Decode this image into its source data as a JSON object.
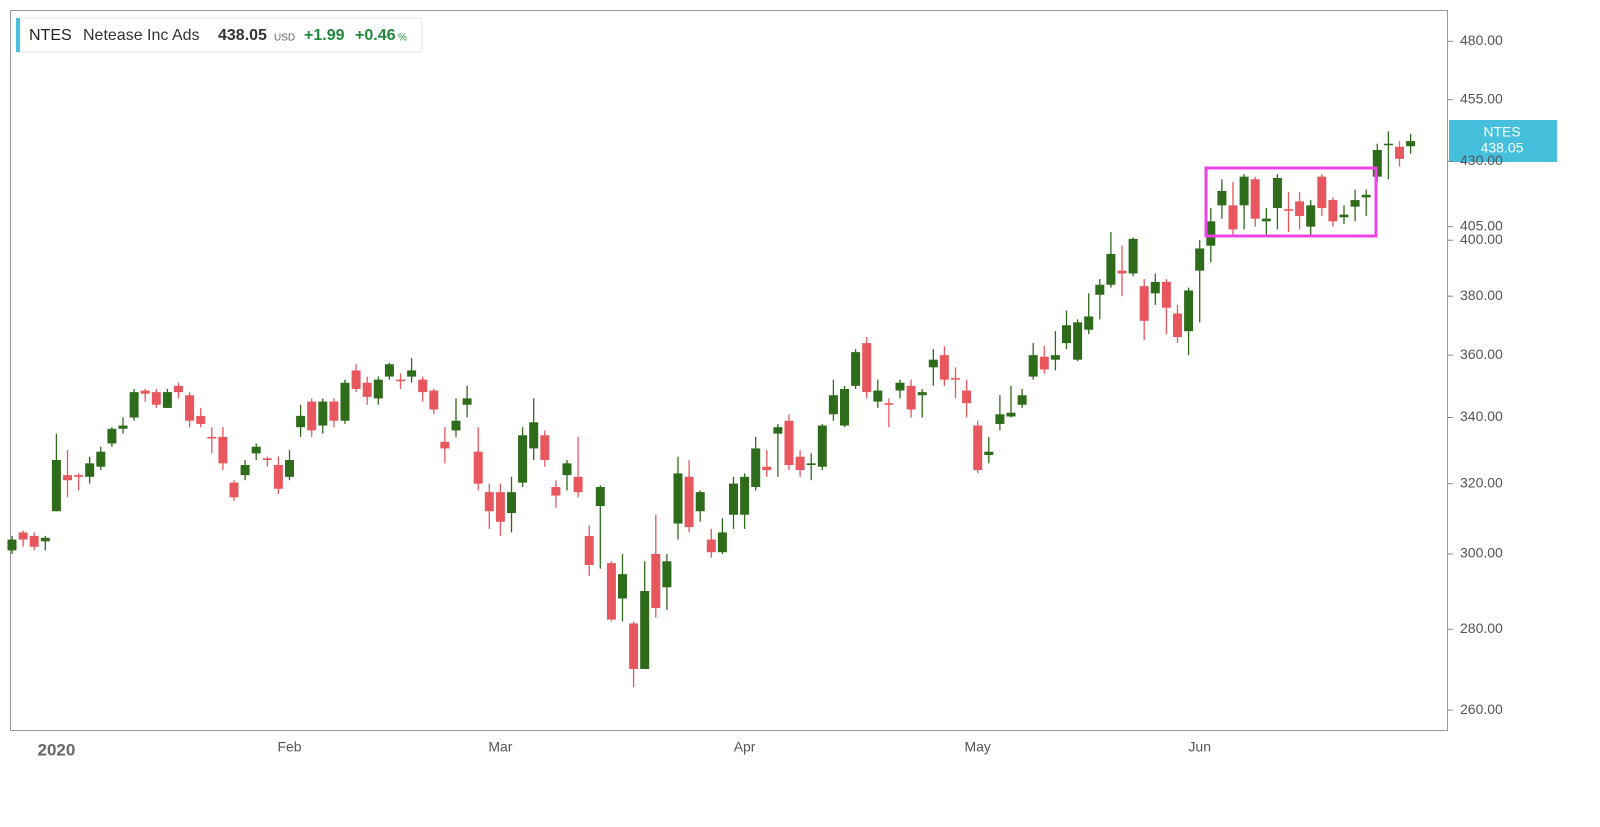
{
  "header": {
    "symbol": "NTES",
    "name": "Netease Inc Ads",
    "price": "438.05",
    "currency": "USD",
    "change": "+1.99",
    "change_percent": "+0.46",
    "percent_sign": "%"
  },
  "chart_data": {
    "type": "candlestick",
    "log_scale": true,
    "grid": false,
    "up_color": "#2e6b1a",
    "down_color": "#e8575d",
    "ylim": [
      255.3,
      494
    ],
    "yticks": [
      {
        "value": 260,
        "label": "260.00"
      },
      {
        "value": 280,
        "label": "280.00"
      },
      {
        "value": 300,
        "label": "300.00"
      },
      {
        "value": 320,
        "label": "320.00"
      },
      {
        "value": 340,
        "label": "340.00"
      },
      {
        "value": 360,
        "label": "360.00"
      },
      {
        "value": 380,
        "label": "380.00"
      },
      {
        "value": 400,
        "label": "400.00"
      },
      {
        "value": 405,
        "label": "405.00"
      },
      {
        "value": 430,
        "label": "430.00"
      },
      {
        "value": 455,
        "label": "455.00"
      },
      {
        "value": 480,
        "label": "480.00"
      }
    ],
    "categories": [
      null,
      null,
      null,
      null,
      "2020",
      null,
      null,
      null,
      null,
      null,
      null,
      null,
      null,
      null,
      null,
      null,
      null,
      null,
      null,
      null,
      null,
      null,
      null,
      null,
      null,
      "Feb",
      null,
      null,
      null,
      null,
      null,
      null,
      null,
      null,
      null,
      null,
      null,
      null,
      null,
      null,
      null,
      null,
      null,
      null,
      "Mar",
      null,
      null,
      null,
      null,
      null,
      null,
      null,
      null,
      null,
      null,
      null,
      null,
      null,
      null,
      null,
      null,
      null,
      null,
      null,
      null,
      null,
      "Apr",
      null,
      null,
      null,
      null,
      null,
      null,
      null,
      null,
      null,
      null,
      null,
      null,
      null,
      null,
      null,
      null,
      null,
      null,
      null,
      null,
      "May",
      null,
      null,
      null,
      null,
      null,
      null,
      null,
      null,
      null,
      null,
      null,
      null,
      null,
      null,
      null,
      null,
      null,
      null,
      null,
      "Jun",
      null,
      null,
      null,
      null,
      null,
      null,
      null,
      null,
      null,
      null,
      null,
      null,
      null,
      null,
      null,
      null,
      null,
      null,
      null
    ],
    "open": [
      301,
      306,
      305,
      303.5,
      312,
      322.5,
      322.5,
      322,
      325,
      332,
      336.5,
      340,
      348.5,
      348,
      343,
      350,
      347,
      340.5,
      334,
      334,
      320.3,
      322.5,
      329,
      327.5,
      325.5,
      322,
      337,
      345,
      337.5,
      345,
      339,
      355,
      351,
      346,
      353,
      352,
      353,
      352,
      348.5,
      332.5,
      336,
      344,
      329.5,
      317.5,
      317.5,
      311.5,
      320.3,
      330.5,
      334.5,
      319,
      322.5,
      322,
      305,
      313.5,
      297.5,
      288,
      281.5,
      270,
      300,
      291,
      308.5,
      322,
      312,
      304,
      300.5,
      311,
      311,
      319,
      325,
      335,
      339,
      328,
      325.5,
      325,
      341,
      337.5,
      350,
      364,
      345,
      344.5,
      348.5,
      350,
      347,
      356,
      360,
      352.5,
      348.5,
      337.5,
      328.5,
      338,
      340.3,
      344,
      353,
      359.5,
      358.5,
      364,
      358.5,
      368.5,
      380.5,
      384,
      389,
      388,
      383.5,
      381,
      385,
      374,
      368,
      389,
      398,
      413,
      413,
      413,
      423,
      407,
      412,
      411.5,
      414.5,
      405,
      424,
      415,
      408.5,
      412.5,
      416,
      424,
      436.5,
      435.8,
      436
    ],
    "high": [
      305,
      306.5,
      306,
      305,
      335,
      330,
      323,
      328,
      331,
      337,
      340,
      349,
      349,
      349,
      349,
      351,
      348,
      343,
      337,
      337,
      321,
      327,
      332,
      328,
      328,
      330,
      344,
      346,
      346,
      346,
      352,
      357,
      353,
      353,
      357.5,
      354,
      359,
      353,
      349,
      337,
      346,
      350,
      337,
      320,
      320,
      322,
      337,
      346,
      336,
      321,
      327,
      334,
      308,
      319.5,
      298,
      300,
      282,
      298,
      311,
      300,
      328,
      327,
      318,
      307,
      310,
      322,
      323,
      334,
      330,
      338,
      341,
      330,
      329,
      338,
      352,
      350,
      362,
      366,
      352,
      346,
      352,
      352,
      349,
      362,
      363,
      356,
      352,
      339,
      334,
      347,
      350,
      349,
      364,
      363,
      368,
      375,
      372,
      381,
      386,
      403,
      398,
      401,
      386,
      388,
      386,
      377,
      383,
      400,
      412,
      423,
      422,
      425,
      424,
      412,
      425,
      418,
      418,
      415,
      425,
      416,
      413,
      419,
      419,
      437,
      442,
      438,
      441
    ],
    "low": [
      300,
      302,
      301,
      301,
      312,
      316,
      318,
      320,
      324,
      331,
      335,
      339,
      345,
      343,
      343,
      346,
      337,
      337,
      329,
      324,
      315,
      321,
      327,
      325,
      317,
      321,
      334,
      334,
      335,
      337,
      338,
      348,
      344,
      344,
      352,
      349,
      351,
      345,
      341,
      326,
      334,
      340,
      318,
      307,
      305,
      306,
      319,
      327,
      325,
      313,
      318,
      316,
      294,
      296,
      282,
      282,
      265.5,
      270,
      283,
      285,
      304,
      306,
      309,
      299,
      300,
      307,
      307,
      318,
      322,
      322,
      324,
      322,
      321,
      324,
      339,
      337,
      349,
      346,
      343,
      337,
      346,
      340,
      340,
      350,
      350,
      346,
      340,
      323,
      326,
      336,
      340,
      343,
      352,
      354,
      355,
      362,
      358,
      367,
      372,
      383,
      380,
      387,
      365,
      377,
      367,
      364,
      360,
      371,
      392,
      408,
      402,
      404,
      405,
      402,
      404,
      403,
      404,
      402,
      409,
      405,
      406,
      407,
      409,
      422,
      423,
      428,
      433
    ],
    "close": [
      304,
      304,
      302,
      304.5,
      327,
      321,
      322,
      326,
      329.5,
      336.5,
      337.5,
      348,
      347.5,
      344,
      348,
      348,
      339,
      338,
      333.5,
      326,
      316,
      325.5,
      331,
      327,
      318.5,
      327,
      340.5,
      336,
      345,
      339,
      351,
      349,
      346.5,
      352,
      357,
      351.5,
      355,
      348,
      342.5,
      330.5,
      339,
      346,
      320,
      312,
      309,
      317.5,
      334.5,
      338.5,
      327,
      316.5,
      326,
      317.5,
      297,
      319,
      282.5,
      294.5,
      270,
      290,
      285.5,
      298,
      323,
      307.5,
      317.5,
      300.5,
      306,
      320,
      322,
      330.5,
      324,
      337,
      325.5,
      324,
      326,
      337.5,
      347,
      349,
      361,
      348,
      348.5,
      344,
      351,
      342.5,
      348,
      358.5,
      352,
      352,
      344.5,
      324,
      329.5,
      341,
      341.5,
      347,
      360,
      355.3,
      360,
      370,
      371,
      373,
      384,
      395,
      388,
      400.5,
      371.5,
      385,
      376,
      366,
      382,
      397,
      407,
      418.5,
      404,
      424,
      408,
      408,
      423.5,
      411,
      409,
      413,
      412,
      407,
      409.5,
      415,
      417,
      434.5,
      437,
      431,
      438.05
    ]
  }
}
